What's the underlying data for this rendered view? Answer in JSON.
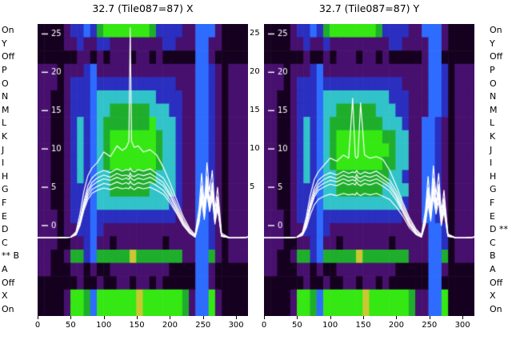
{
  "titles": {
    "left": "32.7 (Tile087=87) X",
    "right": "32.7 (Tile087=87) Y"
  },
  "row_labels": [
    "On",
    "Y",
    "Off",
    "P",
    "O",
    "N",
    "M",
    "L",
    "K",
    "J",
    "I",
    "H",
    "G",
    "F",
    "E",
    "D",
    "C",
    "B",
    "A",
    "Off",
    "X",
    "On"
  ],
  "left_flag_index": 17,
  "right_flag_index": 15,
  "flag_text": "**",
  "colors": {
    "curve": "#ffffff",
    "tick_text_inside": "#ffffff",
    "axis_text": "#000000"
  },
  "chart_data": [
    {
      "type": "heatmap",
      "title": "32.7 (Tile087=87) X",
      "xlim": [
        0,
        318
      ],
      "ylim": [
        -11.8,
        26.3
      ],
      "x_ticks": [
        0,
        50,
        100,
        150,
        200,
        250,
        300
      ],
      "y_ticks": [
        25,
        20,
        15,
        10,
        5,
        0
      ],
      "right_y_ticks": [
        25,
        20,
        15,
        10,
        5
      ],
      "palette": {
        ".": "#160020",
        "p": "#47106e",
        "b": "#2a2fc0",
        "B": "#2e6cff",
        "c": "#31c3c9",
        "g": "#1fae2c",
        "G": "#35e813",
        "y": "#c8c832"
      },
      "heatmap_rows": [
        "....pbbBbgGGGGGGGgbbbbppBBBp....",
        "....ppbppbbppppppppbbpppBBpp....",
        "......pp.p.ppp.pp.p.....BBp.....",
        "ppp.pppbBpppppppppppppppBBbp.ppp",
        "ppp.pbbbBbbbbbbbbbbbbpppBBbp.ppp",
        "pp..pbbbBcccccccccbbbbppBBbp.ppp",
        "pp..pbbbBccggggggcccbbppBBbp.ppp",
        "pp..pbcbBcgggggggGcccbppBBbp.ppp",
        "pp..pbcbBcgGGGGGGGgccbppBBbp.ppp",
        "pp..pbcbBcgGGGGGGGgccbppBBbp.ppp",
        "pp..pbcbBcgGGGGGGGgccbppBBbp.ppp",
        "pp..pbcbBccgggggggcccbppBBbp.ppp",
        "pp..pbbbBccggggggccccbppBBbp.ppp",
        "pp..pbbbBcccccccccccbbppBBbp.ppp",
        "ppp.pbbbBbbbbbbbbbbbbpppBBbp.ppp",
        "ppp.ppbbBbppppppppppppppBBbp.ppp",
        "ppp..ppbBpp.ppppppp.ppppBBbp.ppp",
        "pp..pggbBgggggygggggggppBBgp.ppp",
        "pp...pp.p..ppppppppp....BBp.....",
        "......p..p..pp.pp.p.....BBp.....",
        "....pGGgBGGGGGGyGGGGGGgpBBGp....",
        "....pGGgBGGGGGGyGGGGGGgpBBGp...."
      ],
      "line_x": [
        0,
        30,
        50,
        58,
        64,
        70,
        76,
        82,
        90,
        100,
        110,
        120,
        128,
        134,
        138,
        140,
        142,
        146,
        152,
        160,
        170,
        180,
        190,
        200,
        210,
        220,
        230,
        238,
        244,
        248,
        252,
        256,
        260,
        264,
        268,
        272,
        278,
        290,
        305,
        318
      ],
      "line_series": [
        [
          -1.6,
          -1.6,
          -1.5,
          -0.8,
          1.5,
          4.5,
          6.5,
          7.5,
          8.2,
          9.6,
          9.0,
          10.4,
          9.8,
          10.2,
          11.0,
          25.8,
          11.0,
          10.2,
          10.4,
          9.6,
          9.9,
          9.2,
          7.6,
          5.6,
          3.4,
          1.2,
          -0.4,
          -1.2,
          2.2,
          6.8,
          2.8,
          8.2,
          4.4,
          7.2,
          2.0,
          5.0,
          -1.0,
          -1.6,
          -1.6,
          -1.5
        ],
        [
          -1.6,
          -1.6,
          -1.5,
          -1.0,
          0.8,
          3.2,
          5.2,
          6.2,
          6.8,
          7.2,
          6.9,
          7.4,
          7.1,
          7.3,
          7.2,
          7.5,
          7.2,
          7.0,
          7.3,
          7.1,
          7.4,
          6.8,
          6.2,
          4.8,
          2.8,
          0.8,
          -0.6,
          -1.3,
          1.4,
          5.2,
          2.0,
          6.4,
          3.2,
          5.6,
          1.2,
          3.8,
          -1.2,
          -1.6,
          -1.6,
          -1.5
        ],
        [
          -1.6,
          -1.6,
          -1.5,
          -1.1,
          0.5,
          2.8,
          4.6,
          5.6,
          6.2,
          6.6,
          6.3,
          6.8,
          6.5,
          6.6,
          6.4,
          6.9,
          6.5,
          6.4,
          6.7,
          6.5,
          6.8,
          6.2,
          5.6,
          4.2,
          2.4,
          0.5,
          -0.8,
          -1.4,
          1.0,
          4.6,
          1.6,
          5.8,
          2.8,
          5.0,
          0.8,
          3.2,
          -1.3,
          -1.6,
          -1.6,
          -1.5
        ],
        [
          -1.6,
          -1.6,
          -1.5,
          -1.1,
          0.3,
          2.5,
          4.2,
          5.2,
          5.7,
          6.1,
          5.9,
          6.3,
          6.0,
          6.2,
          6.0,
          6.4,
          6.1,
          5.9,
          6.2,
          6.0,
          6.3,
          5.8,
          5.2,
          3.9,
          2.1,
          0.3,
          -0.9,
          -1.4,
          0.8,
          4.2,
          1.4,
          5.4,
          2.5,
          4.6,
          0.6,
          2.9,
          -1.3,
          -1.6,
          -1.6,
          -1.5
        ],
        [
          -1.6,
          -1.6,
          -1.5,
          -1.2,
          0.1,
          2.2,
          3.8,
          4.7,
          5.1,
          5.5,
          5.3,
          5.7,
          5.4,
          5.6,
          5.4,
          5.8,
          5.5,
          5.3,
          5.6,
          5.4,
          5.7,
          5.2,
          4.6,
          3.4,
          1.8,
          0.1,
          -1.0,
          -1.5,
          0.6,
          3.7,
          1.1,
          4.8,
          2.1,
          4.1,
          0.4,
          2.5,
          -1.4,
          -1.6,
          -1.6,
          -1.5
        ],
        [
          -1.6,
          -1.6,
          -1.5,
          -1.2,
          0.0,
          2.0,
          3.4,
          4.2,
          4.6,
          4.9,
          4.7,
          5.0,
          4.8,
          4.9,
          4.8,
          5.1,
          4.9,
          4.7,
          5.0,
          4.8,
          5.0,
          4.6,
          4.1,
          3.0,
          1.6,
          0.0,
          -1.0,
          -1.5,
          0.4,
          3.2,
          0.8,
          4.2,
          1.8,
          3.6,
          0.2,
          2.2,
          -1.4,
          -1.6,
          -1.6,
          -1.5
        ]
      ]
    },
    {
      "type": "heatmap",
      "title": "32.7 (Tile087=87) Y",
      "xlim": [
        0,
        318
      ],
      "ylim": [
        -11.8,
        26.3
      ],
      "x_ticks": [
        0,
        50,
        100,
        150,
        200,
        250,
        300
      ],
      "y_ticks": [
        25,
        20,
        15,
        10,
        5,
        0
      ],
      "right_y_ticks": [],
      "palette": {
        ".": "#160020",
        "p": "#47106e",
        "b": "#2a2fc0",
        "B": "#2e6cff",
        "c": "#31c3c9",
        "g": "#1fae2c",
        "G": "#35e813",
        "y": "#c8c832"
      },
      "heatmap_rows": [
        "....pbbBbgGGGGGGGgbbbbppBBBp....",
        "....ppbppbpppppppppbbppppBBp....",
        "......p..p.ppp.pp.p.....pBB.....",
        "ppp.pppbBppppppppppppppppBBb.ppp",
        "ppp.pbbbBbbbbbbbbbbbbppppBBb.ppp",
        "pp..pbbbBccccccccccbbbpppBBb.ppp",
        "pp..pbbbBccggggggcccbbpppBBb.ppp",
        "pp..pbcbBcggggggggcccbppBBbp.ppp",
        "pp..pbcbBcgGGGGGGGggccppBBbp.ppp",
        "pp..pbcbBcgGGGGGGGGgccppBBbp.ppp",
        "pp..pbcbBcgGGGGGGGggccppBBbp.ppp",
        "pp..pbcbBccggggggggccbppBBbp.ppp",
        "pp..pbbbBccgggggggccccppBBbp.ppp",
        "pp..pbbbBccccccccccccbppBBbp.ppp",
        "ppp.pbbbBbbbbbbbbbbbbpppBBbp.ppp",
        "ppp.ppbbBbpppppppppppppppBBb.ppp",
        "ppp..ppbBpp.ppppppp.pppppBBb.ppp",
        "pp..pggbBgggggygggggggpppBBg.ppp",
        "pp...pp.p..ppppppppp.....BBp....",
        "......p..p..pp.pp.p......BB.....",
        "....pGGgBGGGGGGyGGGGGGgppBBG....",
        "....pGGgBGGGGGGyGGGGGGgppBBG...."
      ],
      "line_x": [
        0,
        30,
        50,
        58,
        64,
        70,
        76,
        82,
        90,
        100,
        110,
        120,
        128,
        134,
        138,
        140,
        142,
        146,
        152,
        160,
        170,
        180,
        190,
        200,
        210,
        220,
        230,
        238,
        244,
        248,
        252,
        256,
        260,
        264,
        268,
        272,
        278,
        290,
        305,
        318
      ],
      "line_series": [
        [
          -1.6,
          -1.6,
          -1.5,
          -0.9,
          1.2,
          4.0,
          6.0,
          7.0,
          7.8,
          8.8,
          8.4,
          9.2,
          8.8,
          16.6,
          9.0,
          8.8,
          9.0,
          16.0,
          9.2,
          8.8,
          9.0,
          8.6,
          7.2,
          5.2,
          3.0,
          1.0,
          -0.5,
          -1.2,
          2.0,
          6.4,
          2.6,
          7.8,
          4.0,
          6.8,
          1.8,
          4.6,
          -1.1,
          -1.6,
          -1.6,
          -1.5
        ],
        [
          -1.6,
          -1.6,
          -1.5,
          -1.0,
          0.7,
          3.0,
          4.9,
          5.9,
          6.5,
          6.9,
          6.6,
          7.1,
          6.8,
          7.0,
          6.9,
          7.2,
          6.9,
          6.7,
          7.0,
          6.8,
          7.1,
          6.5,
          5.9,
          4.5,
          2.6,
          0.7,
          -0.7,
          -1.3,
          1.3,
          5.0,
          1.9,
          6.2,
          3.0,
          5.4,
          1.1,
          3.6,
          -1.2,
          -1.6,
          -1.6,
          -1.5
        ],
        [
          -1.6,
          -1.6,
          -1.5,
          -1.1,
          0.4,
          2.6,
          4.4,
          5.4,
          6.0,
          6.4,
          6.1,
          6.6,
          6.3,
          6.4,
          6.2,
          6.7,
          6.3,
          6.2,
          6.5,
          6.3,
          6.6,
          6.0,
          5.4,
          4.0,
          2.2,
          0.4,
          -0.9,
          -1.4,
          0.9,
          4.4,
          1.5,
          5.6,
          2.7,
          4.8,
          0.7,
          3.0,
          -1.3,
          -1.6,
          -1.6,
          -1.5
        ],
        [
          -1.6,
          -1.6,
          -1.5,
          -1.2,
          0.2,
          2.3,
          4.0,
          5.0,
          5.5,
          5.9,
          5.7,
          6.1,
          5.8,
          6.0,
          5.8,
          6.2,
          5.9,
          5.7,
          6.0,
          5.8,
          6.1,
          5.6,
          5.0,
          3.7,
          1.9,
          0.2,
          -1.0,
          -1.4,
          0.7,
          4.0,
          1.2,
          5.2,
          2.3,
          4.4,
          0.5,
          2.7,
          -1.3,
          -1.6,
          -1.6,
          -1.5
        ],
        [
          -1.6,
          -1.6,
          -1.5,
          -1.2,
          0.0,
          2.1,
          3.7,
          4.6,
          5.0,
          5.4,
          5.2,
          5.6,
          5.3,
          5.5,
          5.3,
          5.7,
          5.4,
          5.2,
          5.5,
          5.3,
          5.6,
          5.1,
          4.5,
          3.3,
          1.7,
          0.0,
          -1.1,
          -1.5,
          0.5,
          3.5,
          1.0,
          4.6,
          2.0,
          3.9,
          0.3,
          2.3,
          -1.4,
          -1.6,
          -1.6,
          -1.5
        ],
        [
          -1.6,
          -1.6,
          -1.5,
          -1.3,
          -0.3,
          1.4,
          2.7,
          3.4,
          3.8,
          4.1,
          3.9,
          4.2,
          4.0,
          4.1,
          4.0,
          4.3,
          4.1,
          3.9,
          4.2,
          4.0,
          4.2,
          3.8,
          3.4,
          2.4,
          1.2,
          -0.3,
          -1.2,
          -1.5,
          0.2,
          2.8,
          0.6,
          3.8,
          1.5,
          3.2,
          0.0,
          1.8,
          -1.4,
          -1.6,
          -1.6,
          -1.5
        ]
      ]
    }
  ]
}
